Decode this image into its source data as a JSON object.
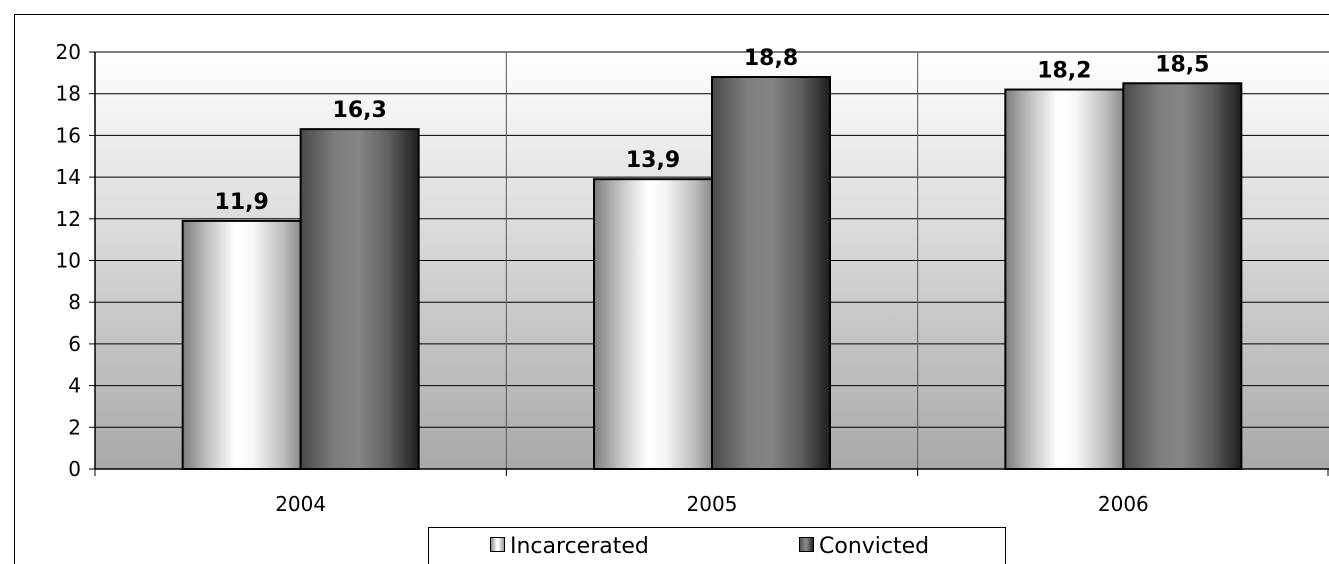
{
  "chart_data": {
    "type": "bar",
    "categories": [
      "2004",
      "2005",
      "2006"
    ],
    "series": [
      {
        "name": "Incarcerated",
        "values": [
          11.9,
          13.9,
          18.2
        ],
        "labels": [
          "11,9",
          "13,9",
          "18,2"
        ]
      },
      {
        "name": "Convicted",
        "values": [
          16.3,
          18.8,
          18.5
        ],
        "labels": [
          "16,3",
          "18,8",
          "18,5"
        ]
      }
    ],
    "yticks": [
      "0",
      "2",
      "4",
      "6",
      "8",
      "10",
      "12",
      "14",
      "16",
      "18",
      "20"
    ],
    "ylim": [
      0,
      20
    ],
    "grid": true,
    "legend_position": "bottom"
  },
  "colors": {
    "incarcerated_bar": "#ffffff",
    "convicted_bar": "#7a7a7a",
    "plot_background_top": "#ffffff",
    "plot_background_bottom": "#a9a9a9"
  }
}
